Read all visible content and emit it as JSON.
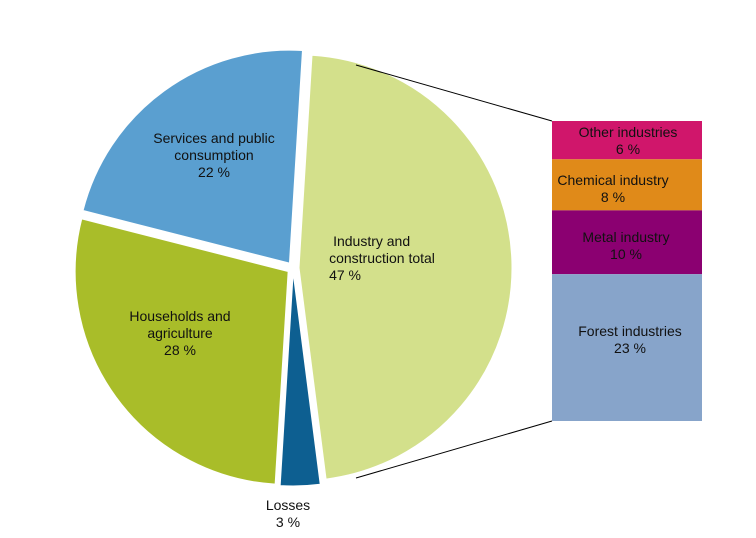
{
  "chart_data": {
    "type": "pie",
    "variant": "bar-of-pie",
    "unit": "%",
    "slices": [
      {
        "name": "Industry and construction total",
        "label_lines": [
          "Industry and",
          "construction total"
        ],
        "value": 47,
        "value_label": "47 %",
        "color": "#d3e08b"
      },
      {
        "name": "Losses",
        "label_lines": [
          "Losses"
        ],
        "value": 3,
        "value_label": "3 %",
        "color": "#0d5f91"
      },
      {
        "name": "Households and agriculture",
        "label_lines": [
          "Households and",
          "agriculture"
        ],
        "value": 28,
        "value_label": "28 %",
        "color": "#a9bd29"
      },
      {
        "name": "Services and public consumption",
        "label_lines": [
          "Services and public",
          "consumption"
        ],
        "value": 22,
        "value_label": "22 %",
        "color": "#5a9fd0"
      }
    ],
    "breakdown_of": "Industry and construction total",
    "breakdown": [
      {
        "name": "Other industries",
        "value": 6,
        "value_label": "6 %",
        "color": "#d0166b"
      },
      {
        "name": "Chemical industry",
        "value": 8,
        "value_label": "8 %",
        "color": "#e08a19"
      },
      {
        "name": "Metal industry",
        "value": 10,
        "value_label": "10 %",
        "color": "#8b0071"
      },
      {
        "name": "Forest industries",
        "value": 23,
        "value_label": "23 %",
        "color": "#87a4ca"
      }
    ]
  }
}
